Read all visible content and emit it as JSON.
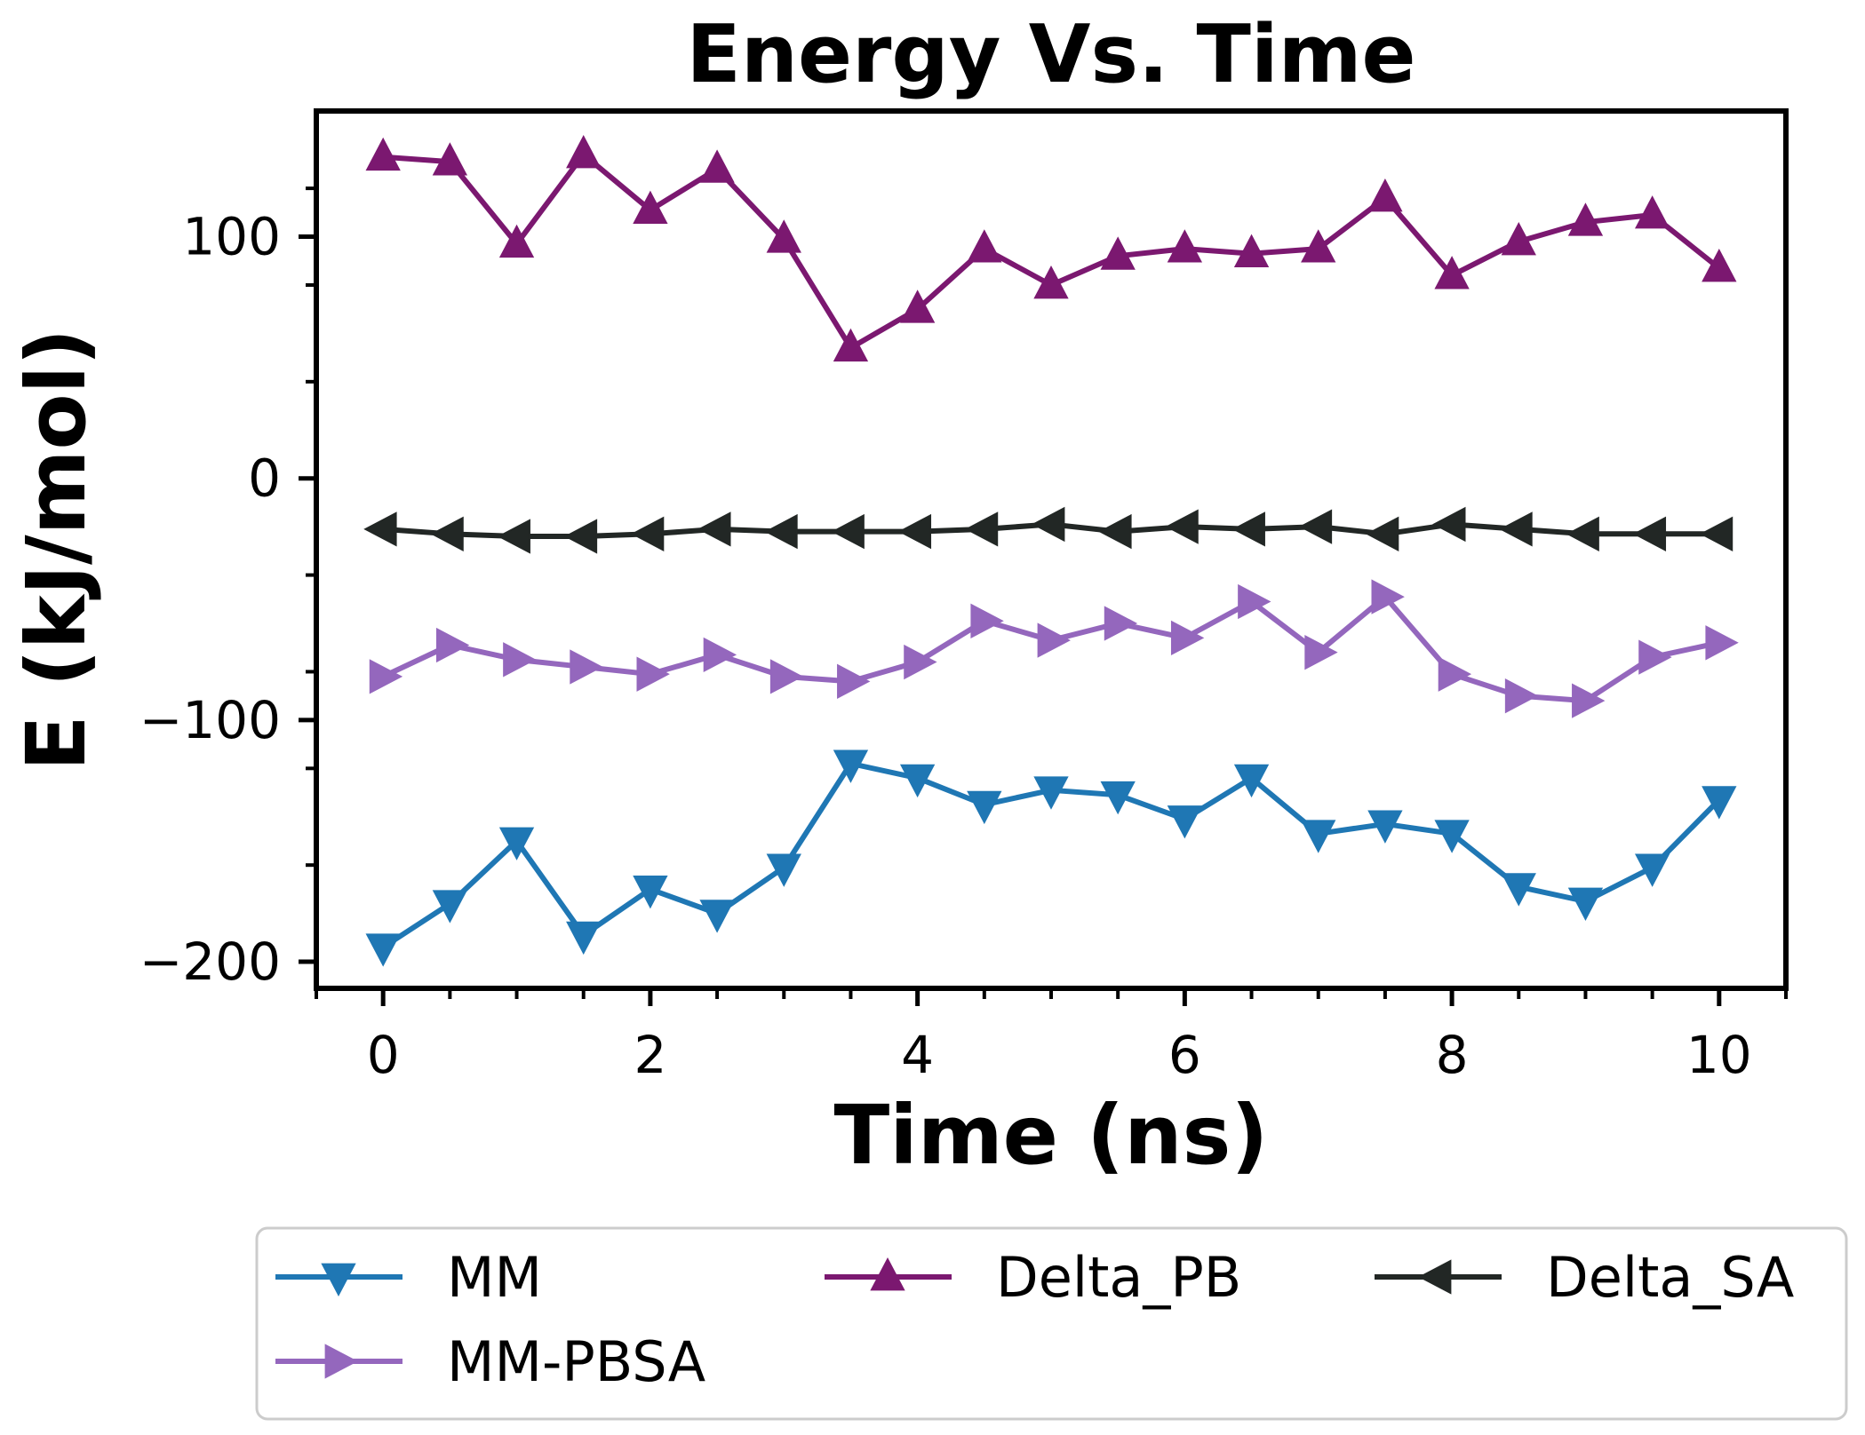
{
  "chart_data": {
    "type": "line",
    "title": "Energy Vs. Time",
    "xlabel": "Time (ns)",
    "ylabel": "E (kJ/mol)",
    "xlim": [
      -0.5,
      10.5
    ],
    "ylim": [
      -211,
      152
    ],
    "x_ticks": [
      0,
      2,
      4,
      6,
      8,
      10
    ],
    "x_tick_labels": [
      "0",
      "2",
      "4",
      "6",
      "8",
      "10"
    ],
    "x_minor_ticks": [
      -0.5,
      0.5,
      1,
      1.5,
      2.5,
      3,
      3.5,
      4.5,
      5,
      5.5,
      6.5,
      7,
      7.5,
      8.5,
      9,
      9.5,
      10.5
    ],
    "y_ticks": [
      -200,
      -100,
      0,
      100
    ],
    "y_tick_labels": [
      "−200",
      "−100",
      "0",
      "100"
    ],
    "y_minor_ticks": [
      -160,
      -120,
      -80,
      -40,
      40,
      80,
      120
    ],
    "grid": false,
    "legend_placement": "below plot, 3 columns",
    "x": [
      0,
      0.5,
      1,
      1.5,
      2,
      2.5,
      3,
      3.5,
      4,
      4.5,
      5,
      5.5,
      6,
      6.5,
      7,
      7.5,
      8,
      8.5,
      9,
      9.5,
      10
    ],
    "series": [
      {
        "name": "MM",
        "color": "#1f77b4",
        "marker": "triangle-down",
        "values": [
          -194,
          -176,
          -150,
          -189,
          -170,
          -180,
          -161,
          -118,
          -124,
          -135,
          -129,
          -131,
          -141,
          -124,
          -147,
          -143,
          -147,
          -169,
          -175,
          -161,
          -133
        ]
      },
      {
        "name": "Delta_PB",
        "color": "#7b1870",
        "marker": "triangle-up",
        "values": [
          133,
          131,
          97,
          134,
          111,
          128,
          99,
          54,
          70,
          95,
          80,
          92,
          95,
          93,
          95,
          116,
          84,
          98,
          106,
          109,
          87
        ]
      },
      {
        "name": "Delta_SA",
        "color": "#222725",
        "marker": "triangle-left",
        "values": [
          -21,
          -23,
          -24,
          -24,
          -23,
          -21,
          -22,
          -22,
          -22,
          -21,
          -19,
          -22,
          -20,
          -21,
          -20,
          -23,
          -19,
          -21,
          -23,
          -23,
          -23
        ]
      },
      {
        "name": "MM-PBSA",
        "color": "#9467bd",
        "marker": "triangle-right",
        "values": [
          -82,
          -69,
          -75,
          -78,
          -81,
          -73,
          -82,
          -84,
          -76,
          -59,
          -67,
          -60,
          -66,
          -51,
          -72,
          -49,
          -81,
          -90,
          -92,
          -74,
          -68
        ]
      }
    ]
  }
}
